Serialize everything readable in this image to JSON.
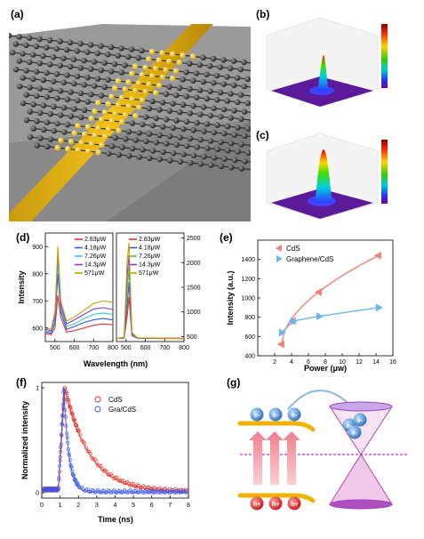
{
  "panels": {
    "a": {
      "label": "(a)"
    },
    "b": {
      "label": "(b)"
    },
    "c": {
      "label": "(c)"
    },
    "d": {
      "label": "(d)",
      "xlabel": "Wavelength (nm)",
      "ylabel": "Intensity"
    },
    "e": {
      "label": "(e)",
      "xlabel": "Power (μw)",
      "ylabel": "Intensity (a.u.)"
    },
    "f": {
      "label": "(f)",
      "xlabel": "Time (ns)",
      "ylabel": "Normalized intensity"
    },
    "g": {
      "label": "(g)",
      "electron_label": "e-",
      "hole_label": "h+"
    }
  },
  "colors": {
    "red": "#e8312b",
    "blue": "#3a55e8",
    "cyan": "#30c8e0",
    "green": "#48c848",
    "purple": "#8a38d8",
    "olive": "#c8a000",
    "salmon": "#f08078",
    "skyblue": "#6ab8f0"
  },
  "chart_data": [
    {
      "type": "line",
      "panel": "d-left",
      "xlim": [
        450,
        800
      ],
      "ylim": [
        550,
        950
      ],
      "x_ticks": [
        500,
        600,
        700,
        800
      ],
      "y_ticks": [
        600,
        700,
        800,
        900
      ],
      "series": [
        {
          "name": "2.83μW",
          "color": "#e8312b",
          "x": [
            450,
            480,
            500,
            515,
            530,
            560,
            600,
            650,
            700,
            750,
            800
          ],
          "y": [
            580,
            575,
            600,
            720,
            640,
            585,
            590,
            600,
            610,
            615,
            612
          ]
        },
        {
          "name": "4.18μW",
          "color": "#3a55e8",
          "x": [
            450,
            480,
            500,
            515,
            530,
            560,
            600,
            650,
            700,
            750,
            800
          ],
          "y": [
            585,
            580,
            620,
            800,
            660,
            595,
            605,
            620,
            630,
            635,
            630
          ]
        },
        {
          "name": "7.26μW",
          "color": "#30c8e0",
          "x": [
            450,
            480,
            500,
            515,
            530,
            560,
            600,
            650,
            700,
            750,
            800
          ],
          "y": [
            590,
            585,
            640,
            850,
            670,
            605,
            615,
            635,
            650,
            655,
            650
          ]
        },
        {
          "name": "14.3μW",
          "color": "#8a38d8",
          "x": [
            450,
            480,
            500,
            515,
            530,
            560,
            600,
            650,
            700,
            750,
            800
          ],
          "y": [
            595,
            590,
            650,
            880,
            685,
            615,
            630,
            650,
            670,
            675,
            668
          ]
        },
        {
          "name": "571μW",
          "color": "#c8a000",
          "x": [
            450,
            480,
            500,
            515,
            530,
            560,
            600,
            650,
            700,
            750,
            800
          ],
          "y": [
            600,
            595,
            660,
            900,
            700,
            625,
            640,
            665,
            690,
            700,
            695
          ]
        }
      ]
    },
    {
      "type": "line",
      "panel": "d-right",
      "xlim": [
        450,
        800
      ],
      "ylim": [
        400,
        2600
      ],
      "x_ticks": [
        500,
        600,
        700,
        800
      ],
      "y_ticks": [
        500,
        1000,
        1500,
        2000,
        2500
      ],
      "series": [
        {
          "name": "2.83μW",
          "color": "#e8312b",
          "x": [
            450,
            490,
            505,
            515,
            530,
            560,
            800
          ],
          "y": [
            460,
            470,
            900,
            1300,
            520,
            465,
            460
          ]
        },
        {
          "name": "4.18μW",
          "color": "#3a55e8",
          "x": [
            450,
            490,
            505,
            515,
            530,
            560,
            800
          ],
          "y": [
            460,
            475,
            1100,
            1600,
            530,
            468,
            462
          ]
        },
        {
          "name": "7.26μW",
          "color": "#48c848",
          "x": [
            450,
            490,
            505,
            515,
            530,
            560,
            800
          ],
          "y": [
            460,
            480,
            1400,
            1900,
            545,
            470,
            463
          ]
        },
        {
          "name": "14.3μW",
          "color": "#8a38d8",
          "x": [
            450,
            490,
            505,
            515,
            530,
            560,
            800
          ],
          "y": [
            460,
            485,
            1700,
            2150,
            560,
            472,
            464
          ]
        },
        {
          "name": "571μW",
          "color": "#c8a000",
          "x": [
            450,
            490,
            505,
            515,
            530,
            560,
            800
          ],
          "y": [
            460,
            490,
            2000,
            2400,
            580,
            475,
            465
          ]
        }
      ]
    },
    {
      "type": "line",
      "panel": "e",
      "xlim": [
        0,
        16
      ],
      "ylim": [
        400,
        1600
      ],
      "x_ticks": [
        2,
        4,
        6,
        8,
        10,
        12,
        14,
        16
      ],
      "y_ticks": [
        400,
        600,
        800,
        1000,
        1200,
        1400
      ],
      "series": [
        {
          "name": "CdS",
          "color": "#f08078",
          "marker": "triangle-left",
          "x": [
            2.83,
            4.18,
            7.26,
            14.3
          ],
          "y": [
            520,
            760,
            1060,
            1440
          ]
        },
        {
          "name": "Graphene/CdS",
          "color": "#6ab8f0",
          "marker": "triangle-right",
          "x": [
            2.83,
            4.18,
            7.26,
            14.3
          ],
          "y": [
            640,
            760,
            810,
            900
          ]
        }
      ]
    },
    {
      "type": "scatter",
      "panel": "f",
      "xlim": [
        0,
        8
      ],
      "ylim": [
        -0.05,
        1.05
      ],
      "x_ticks": [
        0,
        1,
        2,
        3,
        4,
        5,
        6,
        7,
        8
      ],
      "y_ticks": [
        0,
        1
      ],
      "series": [
        {
          "name": "CdS",
          "color": "#e8312b",
          "rise": 1.25,
          "tau": 1.35
        },
        {
          "name": "Gra/CdS",
          "color": "#3a55e8",
          "rise": 1.2,
          "tau": 0.28
        }
      ]
    }
  ]
}
